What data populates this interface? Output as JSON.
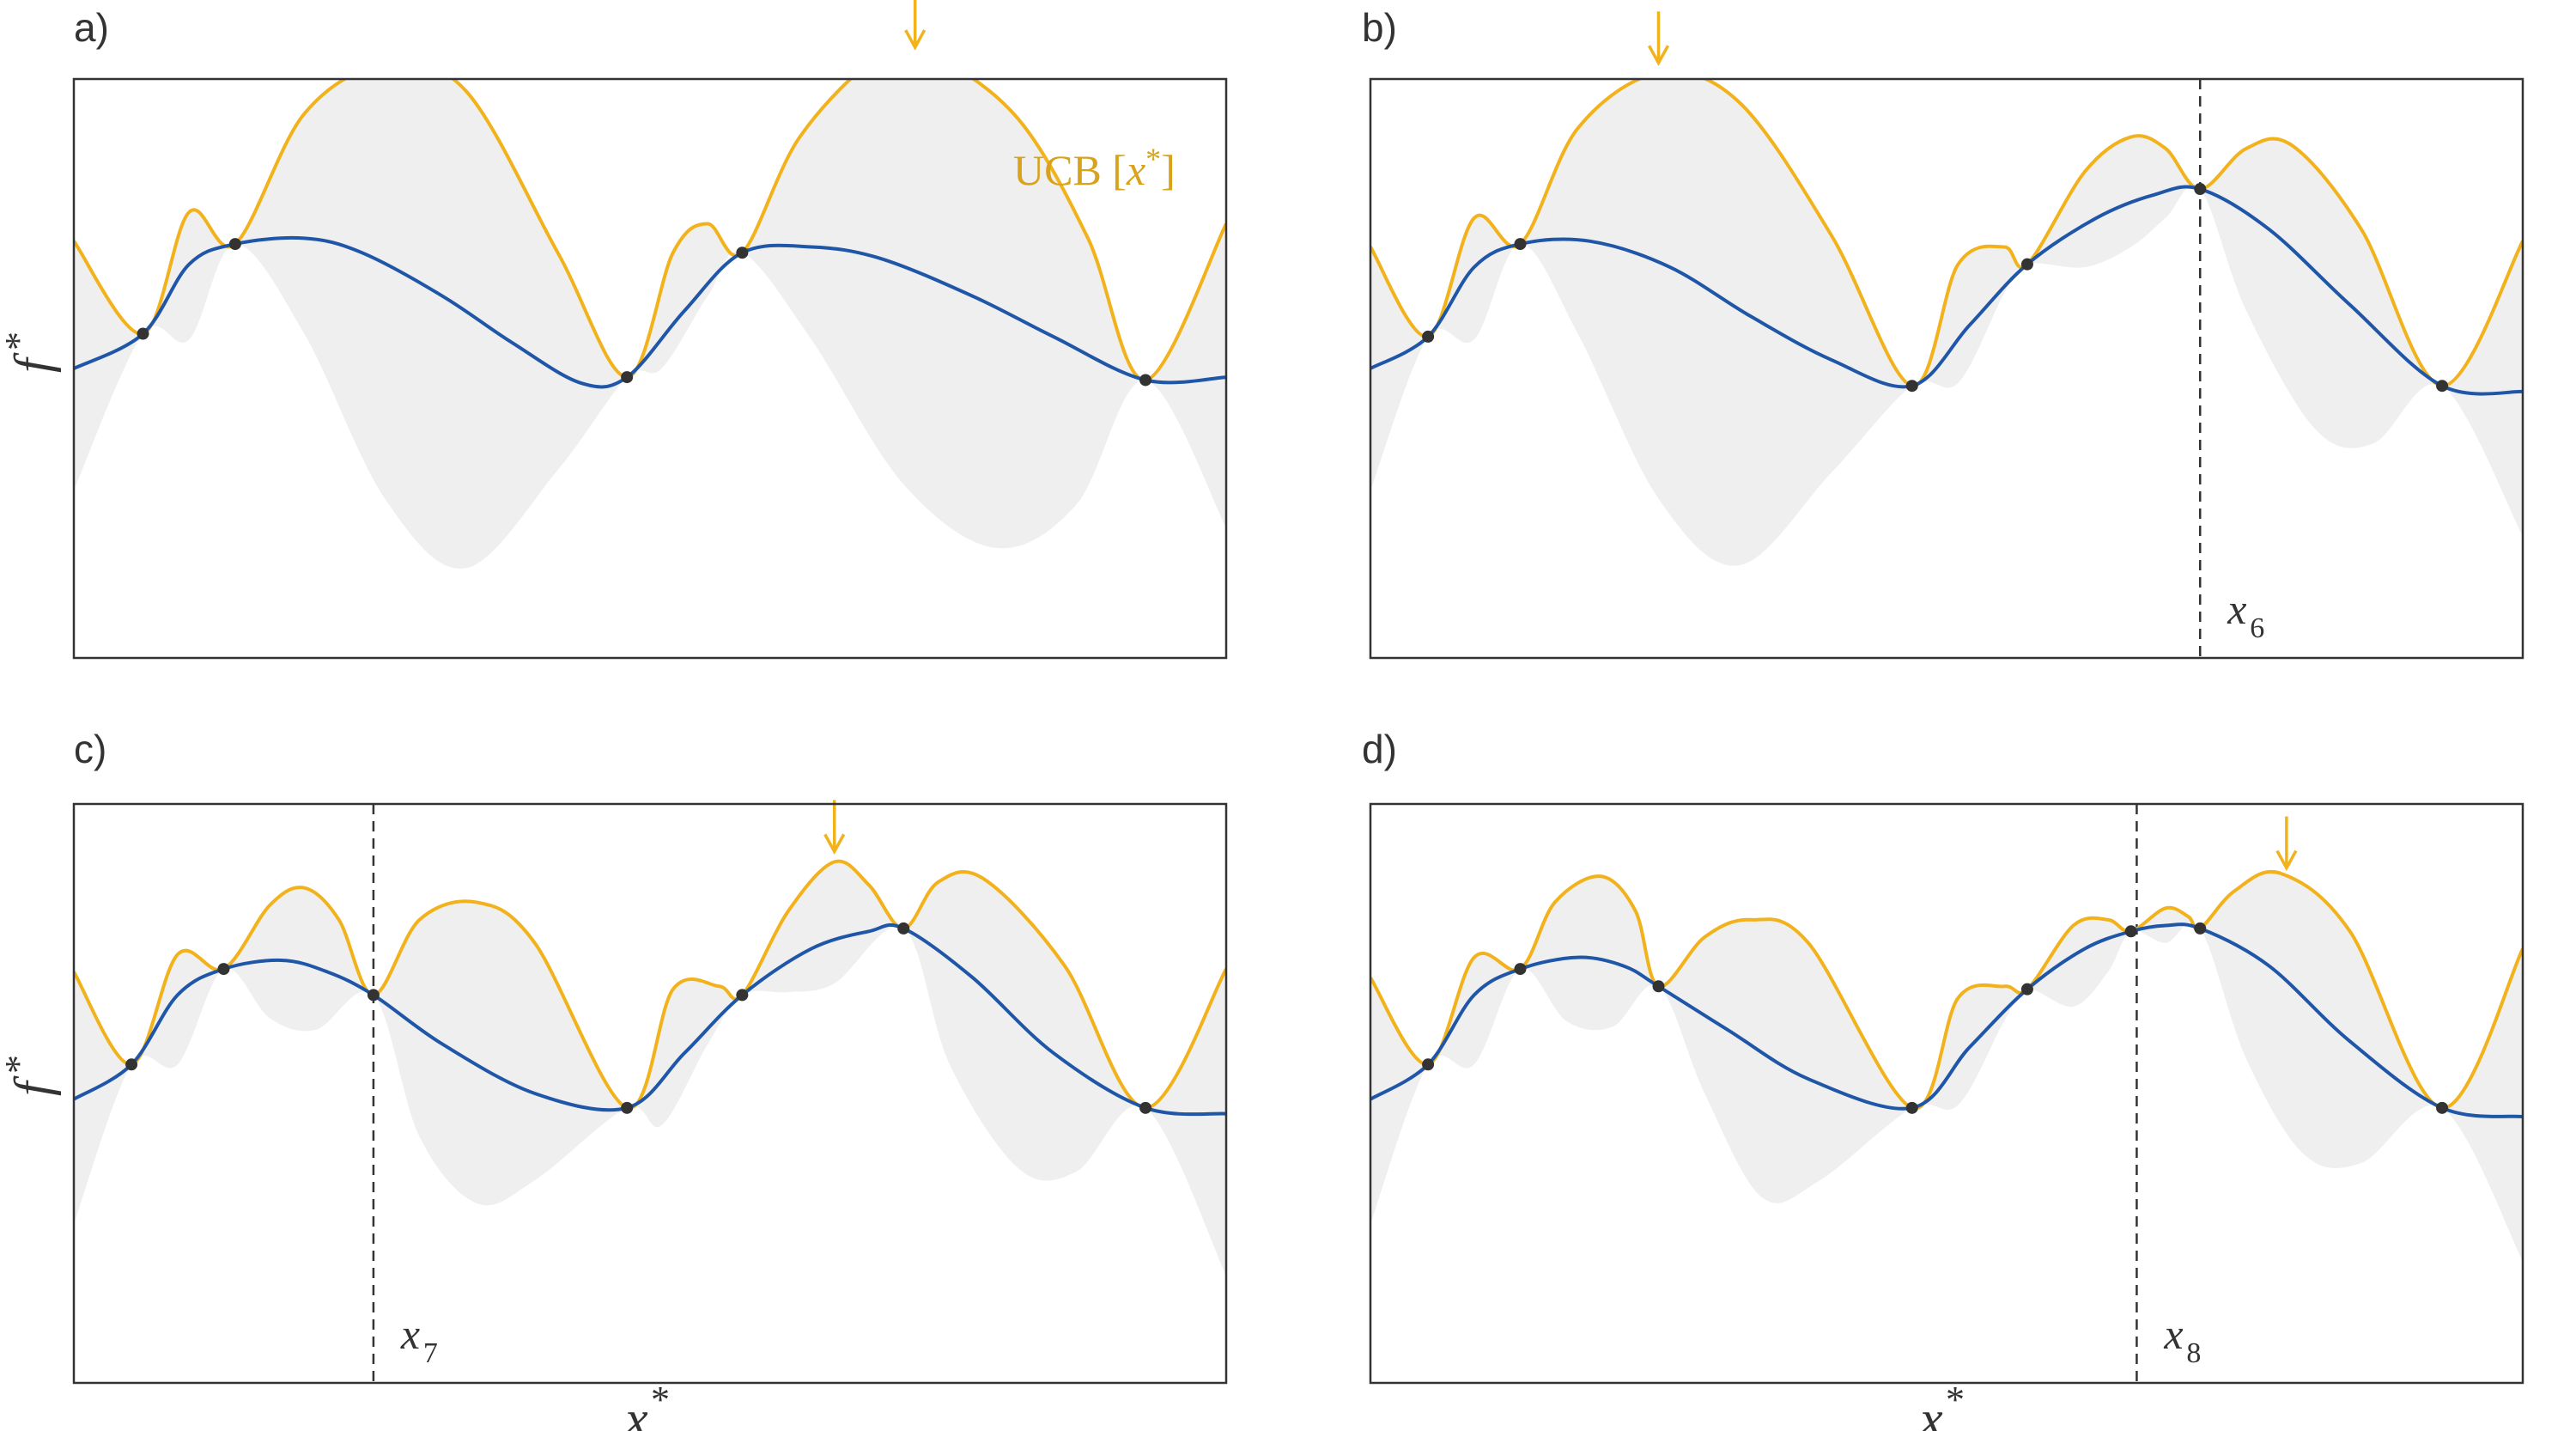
{
  "chart_data": [
    {
      "type": "line",
      "panel_label": "a)",
      "xlabel": "",
      "ylabel_main": "f",
      "ylabel_sup": "*",
      "xlim": [
        0,
        1
      ],
      "ylim": [
        -1.0,
        1.0
      ],
      "ucb_legend_main": "UCB [",
      "ucb_legend_italic": "x",
      "ucb_legend_sup": "*",
      "ucb_legend_close": "]",
      "observations": [
        [
          0.06,
          0.12
        ],
        [
          0.14,
          0.43
        ],
        [
          0.48,
          -0.03
        ],
        [
          0.58,
          0.4
        ],
        [
          0.93,
          -0.04
        ]
      ],
      "ucb_argmax": 0.73,
      "new_point": null,
      "new_point_main": "",
      "new_point_sub": "",
      "mean_samples": [
        [
          0.0,
          0.0
        ],
        [
          0.06,
          0.12
        ],
        [
          0.1,
          0.36
        ],
        [
          0.14,
          0.43
        ],
        [
          0.2,
          0.45
        ],
        [
          0.25,
          0.4
        ],
        [
          0.32,
          0.25
        ],
        [
          0.38,
          0.09
        ],
        [
          0.44,
          -0.05
        ],
        [
          0.48,
          -0.03
        ],
        [
          0.53,
          0.2
        ],
        [
          0.58,
          0.4
        ],
        [
          0.64,
          0.42
        ],
        [
          0.7,
          0.38
        ],
        [
          0.78,
          0.25
        ],
        [
          0.85,
          0.11
        ],
        [
          0.93,
          -0.04
        ],
        [
          1.0,
          -0.03
        ]
      ],
      "ucb_samples": [
        [
          0.0,
          0.44
        ],
        [
          0.06,
          0.12
        ],
        [
          0.1,
          0.54
        ],
        [
          0.14,
          0.43
        ],
        [
          0.2,
          0.88
        ],
        [
          0.27,
          1.05
        ],
        [
          0.34,
          0.96
        ],
        [
          0.42,
          0.4
        ],
        [
          0.48,
          -0.03
        ],
        [
          0.52,
          0.4
        ],
        [
          0.55,
          0.5
        ],
        [
          0.58,
          0.4
        ],
        [
          0.63,
          0.8
        ],
        [
          0.7,
          1.08
        ],
        [
          0.75,
          1.07
        ],
        [
          0.82,
          0.86
        ],
        [
          0.88,
          0.45
        ],
        [
          0.93,
          -0.04
        ],
        [
          1.0,
          0.5
        ]
      ],
      "lcb_samples": [
        [
          0.0,
          -0.42
        ],
        [
          0.06,
          0.12
        ],
        [
          0.1,
          0.1
        ],
        [
          0.14,
          0.43
        ],
        [
          0.2,
          0.12
        ],
        [
          0.27,
          -0.45
        ],
        [
          0.34,
          -0.69
        ],
        [
          0.42,
          -0.35
        ],
        [
          0.48,
          -0.03
        ],
        [
          0.51,
          0.0
        ],
        [
          0.55,
          0.25
        ],
        [
          0.58,
          0.4
        ],
        [
          0.64,
          0.1
        ],
        [
          0.72,
          -0.4
        ],
        [
          0.8,
          -0.62
        ],
        [
          0.87,
          -0.47
        ],
        [
          0.93,
          -0.04
        ],
        [
          1.0,
          -0.55
        ]
      ]
    },
    {
      "type": "line",
      "panel_label": "b)",
      "xlabel": "",
      "ylabel_main": "",
      "ylabel_sup": "",
      "xlim": [
        0,
        1
      ],
      "ylim": [
        -1.0,
        1.0
      ],
      "observations": [
        [
          0.05,
          0.11
        ],
        [
          0.13,
          0.43
        ],
        [
          0.47,
          -0.06
        ],
        [
          0.57,
          0.36
        ],
        [
          0.72,
          0.62
        ],
        [
          0.93,
          -0.06
        ]
      ],
      "ucb_argmax": 0.25,
      "new_point": 0.72,
      "new_point_main": "x",
      "new_point_sub": "6",
      "mean_samples": [
        [
          0.0,
          0.0
        ],
        [
          0.05,
          0.11
        ],
        [
          0.09,
          0.35
        ],
        [
          0.13,
          0.43
        ],
        [
          0.19,
          0.44
        ],
        [
          0.26,
          0.35
        ],
        [
          0.33,
          0.18
        ],
        [
          0.4,
          0.03
        ],
        [
          0.47,
          -0.06
        ],
        [
          0.52,
          0.15
        ],
        [
          0.57,
          0.36
        ],
        [
          0.63,
          0.52
        ],
        [
          0.68,
          0.6
        ],
        [
          0.72,
          0.62
        ],
        [
          0.78,
          0.48
        ],
        [
          0.85,
          0.22
        ],
        [
          0.93,
          -0.06
        ],
        [
          1.0,
          -0.08
        ]
      ],
      "ucb_samples": [
        [
          0.0,
          0.42
        ],
        [
          0.05,
          0.11
        ],
        [
          0.09,
          0.52
        ],
        [
          0.13,
          0.43
        ],
        [
          0.18,
          0.83
        ],
        [
          0.25,
          1.02
        ],
        [
          0.32,
          0.92
        ],
        [
          0.4,
          0.46
        ],
        [
          0.47,
          -0.06
        ],
        [
          0.51,
          0.36
        ],
        [
          0.55,
          0.42
        ],
        [
          0.57,
          0.36
        ],
        [
          0.62,
          0.68
        ],
        [
          0.66,
          0.8
        ],
        [
          0.69,
          0.76
        ],
        [
          0.72,
          0.62
        ],
        [
          0.76,
          0.76
        ],
        [
          0.8,
          0.77
        ],
        [
          0.86,
          0.48
        ],
        [
          0.93,
          -0.06
        ],
        [
          1.0,
          0.44
        ]
      ],
      "lcb_samples": [
        [
          0.0,
          -0.42
        ],
        [
          0.05,
          0.11
        ],
        [
          0.09,
          0.1
        ],
        [
          0.13,
          0.43
        ],
        [
          0.18,
          0.12
        ],
        [
          0.25,
          -0.45
        ],
        [
          0.32,
          -0.68
        ],
        [
          0.4,
          -0.36
        ],
        [
          0.47,
          -0.06
        ],
        [
          0.51,
          -0.05
        ],
        [
          0.55,
          0.26
        ],
        [
          0.57,
          0.36
        ],
        [
          0.62,
          0.35
        ],
        [
          0.66,
          0.42
        ],
        [
          0.69,
          0.52
        ],
        [
          0.72,
          0.62
        ],
        [
          0.76,
          0.2
        ],
        [
          0.82,
          -0.21
        ],
        [
          0.87,
          -0.26
        ],
        [
          0.93,
          -0.06
        ],
        [
          1.0,
          -0.58
        ]
      ]
    },
    {
      "type": "line",
      "panel_label": "c)",
      "xlabel_main": "",
      "xlabel_sup": "",
      "ylabel_main": "f",
      "ylabel_sup": "*",
      "xlim": [
        0,
        1
      ],
      "ylim": [
        -1.0,
        1.0
      ],
      "observations": [
        [
          0.05,
          0.1
        ],
        [
          0.13,
          0.43
        ],
        [
          0.26,
          0.34
        ],
        [
          0.48,
          -0.05
        ],
        [
          0.58,
          0.34
        ],
        [
          0.72,
          0.57
        ],
        [
          0.93,
          -0.05
        ]
      ],
      "ucb_argmax": 0.66,
      "new_point": 0.26,
      "new_point_main": "x",
      "new_point_sub": "7",
      "mean_samples": [
        [
          0.0,
          -0.02
        ],
        [
          0.05,
          0.1
        ],
        [
          0.09,
          0.34
        ],
        [
          0.13,
          0.43
        ],
        [
          0.18,
          0.46
        ],
        [
          0.22,
          0.42
        ],
        [
          0.26,
          0.34
        ],
        [
          0.32,
          0.17
        ],
        [
          0.4,
          0.0
        ],
        [
          0.48,
          -0.05
        ],
        [
          0.53,
          0.14
        ],
        [
          0.58,
          0.34
        ],
        [
          0.64,
          0.5
        ],
        [
          0.69,
          0.56
        ],
        [
          0.72,
          0.57
        ],
        [
          0.78,
          0.4
        ],
        [
          0.85,
          0.14
        ],
        [
          0.93,
          -0.05
        ],
        [
          1.0,
          -0.07
        ]
      ],
      "ucb_samples": [
        [
          0.0,
          0.42
        ],
        [
          0.05,
          0.1
        ],
        [
          0.09,
          0.48
        ],
        [
          0.13,
          0.43
        ],
        [
          0.17,
          0.65
        ],
        [
          0.2,
          0.71
        ],
        [
          0.23,
          0.6
        ],
        [
          0.26,
          0.34
        ],
        [
          0.3,
          0.6
        ],
        [
          0.35,
          0.66
        ],
        [
          0.4,
          0.52
        ],
        [
          0.48,
          -0.05
        ],
        [
          0.52,
          0.36
        ],
        [
          0.56,
          0.37
        ],
        [
          0.58,
          0.34
        ],
        [
          0.62,
          0.63
        ],
        [
          0.66,
          0.8
        ],
        [
          0.69,
          0.72
        ],
        [
          0.72,
          0.57
        ],
        [
          0.75,
          0.73
        ],
        [
          0.79,
          0.74
        ],
        [
          0.86,
          0.44
        ],
        [
          0.93,
          -0.05
        ],
        [
          1.0,
          0.43
        ]
      ],
      "lcb_samples": [
        [
          0.0,
          -0.45
        ],
        [
          0.05,
          0.1
        ],
        [
          0.09,
          0.1
        ],
        [
          0.13,
          0.43
        ],
        [
          0.17,
          0.26
        ],
        [
          0.21,
          0.22
        ],
        [
          0.26,
          0.34
        ],
        [
          0.3,
          -0.15
        ],
        [
          0.35,
          -0.38
        ],
        [
          0.4,
          -0.3
        ],
        [
          0.48,
          -0.05
        ],
        [
          0.51,
          -0.11
        ],
        [
          0.55,
          0.17
        ],
        [
          0.58,
          0.34
        ],
        [
          0.62,
          0.35
        ],
        [
          0.66,
          0.38
        ],
        [
          0.72,
          0.57
        ],
        [
          0.76,
          0.1
        ],
        [
          0.82,
          -0.26
        ],
        [
          0.87,
          -0.27
        ],
        [
          0.93,
          -0.05
        ],
        [
          1.0,
          -0.63
        ]
      ]
    },
    {
      "type": "line",
      "panel_label": "d)",
      "xlabel_main": "",
      "xlabel_sup": "",
      "ylabel_main": "",
      "ylabel_sup": "",
      "xlim": [
        0,
        1
      ],
      "ylim": [
        -1.0,
        1.0
      ],
      "observations": [
        [
          0.05,
          0.1
        ],
        [
          0.13,
          0.43
        ],
        [
          0.25,
          0.37
        ],
        [
          0.47,
          -0.05
        ],
        [
          0.57,
          0.36
        ],
        [
          0.66,
          0.56
        ],
        [
          0.72,
          0.57
        ],
        [
          0.93,
          -0.05
        ]
      ],
      "ucb_argmax": 0.795,
      "new_point": 0.665,
      "new_point_main": "x",
      "new_point_sub": "8",
      "mean_samples": [
        [
          0.0,
          -0.02
        ],
        [
          0.05,
          0.1
        ],
        [
          0.09,
          0.34
        ],
        [
          0.13,
          0.43
        ],
        [
          0.18,
          0.47
        ],
        [
          0.22,
          0.44
        ],
        [
          0.25,
          0.37
        ],
        [
          0.31,
          0.22
        ],
        [
          0.38,
          0.05
        ],
        [
          0.47,
          -0.05
        ],
        [
          0.52,
          0.16
        ],
        [
          0.57,
          0.36
        ],
        [
          0.62,
          0.5
        ],
        [
          0.66,
          0.56
        ],
        [
          0.69,
          0.58
        ],
        [
          0.72,
          0.57
        ],
        [
          0.78,
          0.44
        ],
        [
          0.85,
          0.18
        ],
        [
          0.93,
          -0.05
        ],
        [
          1.0,
          -0.08
        ]
      ],
      "ucb_samples": [
        [
          0.0,
          0.4
        ],
        [
          0.05,
          0.1
        ],
        [
          0.09,
          0.47
        ],
        [
          0.13,
          0.43
        ],
        [
          0.16,
          0.66
        ],
        [
          0.2,
          0.75
        ],
        [
          0.23,
          0.63
        ],
        [
          0.25,
          0.37
        ],
        [
          0.29,
          0.54
        ],
        [
          0.33,
          0.6
        ],
        [
          0.38,
          0.52
        ],
        [
          0.47,
          -0.05
        ],
        [
          0.51,
          0.33
        ],
        [
          0.55,
          0.37
        ],
        [
          0.57,
          0.36
        ],
        [
          0.61,
          0.58
        ],
        [
          0.64,
          0.6
        ],
        [
          0.66,
          0.56
        ],
        [
          0.69,
          0.64
        ],
        [
          0.71,
          0.61
        ],
        [
          0.72,
          0.57
        ],
        [
          0.75,
          0.7
        ],
        [
          0.79,
          0.76
        ],
        [
          0.85,
          0.56
        ],
        [
          0.93,
          -0.05
        ],
        [
          1.0,
          0.5
        ]
      ],
      "lcb_samples": [
        [
          0.0,
          -0.45
        ],
        [
          0.05,
          0.1
        ],
        [
          0.09,
          0.1
        ],
        [
          0.13,
          0.43
        ],
        [
          0.17,
          0.25
        ],
        [
          0.21,
          0.23
        ],
        [
          0.25,
          0.37
        ],
        [
          0.29,
          0.0
        ],
        [
          0.34,
          -0.36
        ],
        [
          0.39,
          -0.3
        ],
        [
          0.47,
          -0.05
        ],
        [
          0.51,
          -0.04
        ],
        [
          0.55,
          0.25
        ],
        [
          0.57,
          0.36
        ],
        [
          0.61,
          0.3
        ],
        [
          0.64,
          0.42
        ],
        [
          0.66,
          0.56
        ],
        [
          0.69,
          0.52
        ],
        [
          0.72,
          0.57
        ],
        [
          0.76,
          0.12
        ],
        [
          0.81,
          -0.21
        ],
        [
          0.86,
          -0.24
        ],
        [
          0.93,
          -0.05
        ],
        [
          1.0,
          -0.58
        ]
      ]
    }
  ],
  "axes": {
    "bottom_xlabel_main": "x",
    "bottom_xlabel_sup": "*"
  },
  "colors": {
    "mean": "#1f56a8",
    "ucb": "#f2b21b",
    "band": "#efefef",
    "frame": "#333333",
    "point": "#333333",
    "arrow": "#f2b21b"
  }
}
